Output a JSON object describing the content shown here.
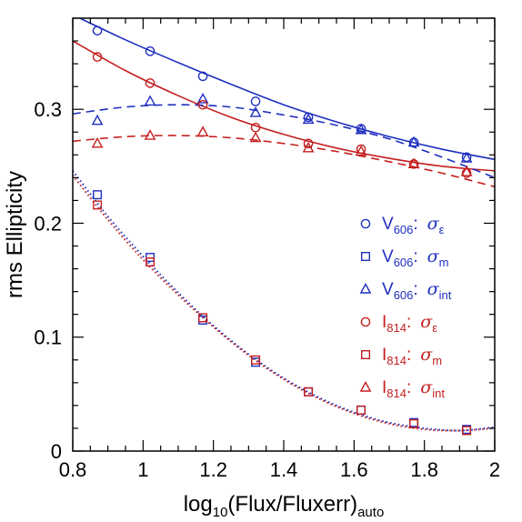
{
  "chart_data": {
    "type": "scatter",
    "xlabel_parts": {
      "base": "log",
      "base_sub": "10",
      "middle": "(Flux/Fluxerr)",
      "tail_sub": "auto"
    },
    "ylabel": "rms Ellipticity",
    "xlim": [
      0.8,
      2.0
    ],
    "ylim": [
      0.0,
      0.38
    ],
    "xticks": [
      0.8,
      1.0,
      1.2,
      1.4,
      1.6,
      1.8,
      2.0
    ],
    "xtick_labels": [
      "0.8",
      "1",
      "1.2",
      "1.4",
      "1.6",
      "1.8",
      "2"
    ],
    "yticks": [
      0.0,
      0.1,
      0.2,
      0.3
    ],
    "ytick_labels": [
      "0",
      "0.1",
      "0.2",
      "0.3"
    ],
    "colors": {
      "blue": "#1f2fbf",
      "red": "#c41e1e"
    },
    "legend_position": "right-middle",
    "series": [
      {
        "name": "V606: σε",
        "label": {
          "band": "V",
          "band_sub": "606",
          "sigma_sub": "ε"
        },
        "color": "blue",
        "marker": "circle",
        "x": [
          0.87,
          1.02,
          1.17,
          1.32,
          1.47,
          1.62,
          1.77,
          1.92
        ],
        "y": [
          0.369,
          0.351,
          0.329,
          0.307,
          0.293,
          0.283,
          0.271,
          0.258
        ]
      },
      {
        "name": "V606: σm",
        "label": {
          "band": "V",
          "band_sub": "606",
          "sigma_sub": "m"
        },
        "color": "blue",
        "marker": "square",
        "x": [
          0.87,
          1.02,
          1.17,
          1.32,
          1.47,
          1.62,
          1.77,
          1.92
        ],
        "y": [
          0.225,
          0.17,
          0.115,
          0.078,
          0.052,
          0.036,
          0.025,
          0.019
        ]
      },
      {
        "name": "V606: σint",
        "label": {
          "band": "V",
          "band_sub": "606",
          "sigma_sub": "int"
        },
        "color": "blue",
        "marker": "triangle",
        "x": [
          0.87,
          1.02,
          1.17,
          1.32,
          1.47,
          1.62,
          1.77,
          1.92
        ],
        "y": [
          0.29,
          0.307,
          0.309,
          0.297,
          0.291,
          0.282,
          0.271,
          0.257
        ]
      },
      {
        "name": "I814: σε",
        "label": {
          "band": "I",
          "band_sub": "814",
          "sigma_sub": "ε"
        },
        "color": "red",
        "marker": "circle",
        "x": [
          0.87,
          1.02,
          1.17,
          1.32,
          1.47,
          1.62,
          1.77,
          1.92
        ],
        "y": [
          0.346,
          0.323,
          0.304,
          0.284,
          0.27,
          0.265,
          0.252,
          0.244
        ]
      },
      {
        "name": "I814: σm",
        "label": {
          "band": "I",
          "band_sub": "814",
          "sigma_sub": "m"
        },
        "color": "red",
        "marker": "square",
        "x": [
          0.87,
          1.02,
          1.17,
          1.32,
          1.47,
          1.62,
          1.77,
          1.92
        ],
        "y": [
          0.216,
          0.166,
          0.117,
          0.08,
          0.052,
          0.036,
          0.024,
          0.018
        ]
      },
      {
        "name": "I814: σint",
        "label": {
          "band": "I",
          "band_sub": "814",
          "sigma_sub": "int"
        },
        "color": "red",
        "marker": "triangle",
        "x": [
          0.87,
          1.02,
          1.17,
          1.32,
          1.47,
          1.62,
          1.77,
          1.92
        ],
        "y": [
          0.27,
          0.277,
          0.28,
          0.275,
          0.266,
          0.263,
          0.252,
          0.245
        ]
      }
    ],
    "fit_curves": [
      {
        "color": "blue",
        "style": "solid",
        "x": [
          0.8,
          0.95,
          1.1,
          1.25,
          1.4,
          1.55,
          1.7,
          1.85,
          2.0
        ],
        "y": [
          0.383,
          0.361,
          0.341,
          0.322,
          0.304,
          0.289,
          0.276,
          0.265,
          0.256
        ]
      },
      {
        "color": "red",
        "style": "solid",
        "x": [
          0.8,
          0.95,
          1.1,
          1.25,
          1.4,
          1.55,
          1.7,
          1.85,
          2.0
        ],
        "y": [
          0.36,
          0.334,
          0.312,
          0.293,
          0.278,
          0.266,
          0.257,
          0.25,
          0.246
        ]
      },
      {
        "color": "blue",
        "style": "dashed",
        "x": [
          0.8,
          0.95,
          1.1,
          1.25,
          1.4,
          1.55,
          1.7,
          1.85,
          2.0
        ],
        "y": [
          0.296,
          0.302,
          0.304,
          0.302,
          0.295,
          0.286,
          0.274,
          0.258,
          0.24
        ]
      },
      {
        "color": "red",
        "style": "dashed",
        "x": [
          0.8,
          0.95,
          1.1,
          1.25,
          1.4,
          1.55,
          1.7,
          1.85,
          2.0
        ],
        "y": [
          0.272,
          0.276,
          0.277,
          0.275,
          0.27,
          0.263,
          0.254,
          0.244,
          0.232
        ]
      },
      {
        "color": "blue",
        "style": "dotted",
        "x": [
          0.8,
          0.9,
          1.0,
          1.1,
          1.2,
          1.3,
          1.4,
          1.5,
          1.6,
          1.7,
          1.8,
          1.9,
          2.0
        ],
        "y": [
          0.246,
          0.206,
          0.171,
          0.139,
          0.11,
          0.085,
          0.064,
          0.047,
          0.034,
          0.025,
          0.02,
          0.018,
          0.021
        ]
      },
      {
        "color": "red",
        "style": "dotted",
        "x": [
          0.8,
          0.9,
          1.0,
          1.1,
          1.2,
          1.3,
          1.4,
          1.5,
          1.6,
          1.7,
          1.8,
          1.9,
          2.0
        ],
        "y": [
          0.242,
          0.203,
          0.168,
          0.137,
          0.109,
          0.084,
          0.063,
          0.046,
          0.033,
          0.024,
          0.019,
          0.018,
          0.02
        ]
      }
    ]
  }
}
